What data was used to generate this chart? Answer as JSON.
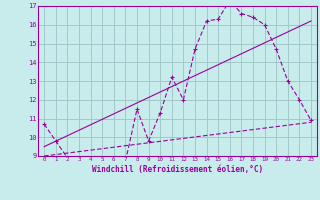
{
  "title": "",
  "xlabel": "Windchill (Refroidissement éolien,°C)",
  "bg_color": "#c8ecec",
  "grid_color": "#a0c8c8",
  "line_color": "#990099",
  "xlim": [
    -0.5,
    23.5
  ],
  "ylim": [
    9,
    17
  ],
  "xticks": [
    0,
    1,
    2,
    3,
    4,
    5,
    6,
    7,
    8,
    9,
    10,
    11,
    12,
    13,
    14,
    15,
    16,
    17,
    18,
    19,
    20,
    21,
    22,
    23
  ],
  "yticks": [
    9,
    10,
    11,
    12,
    13,
    14,
    15,
    16,
    17
  ],
  "line1_x": [
    0,
    1,
    2,
    3,
    4,
    5,
    6,
    7,
    8,
    9,
    10,
    11,
    12,
    13,
    14,
    15,
    16,
    17,
    18,
    19,
    20,
    21,
    22,
    23
  ],
  "line1_y": [
    10.7,
    9.8,
    8.9,
    8.9,
    8.9,
    8.8,
    8.8,
    8.7,
    11.5,
    9.8,
    11.3,
    13.2,
    12.0,
    14.7,
    16.2,
    16.3,
    17.3,
    16.6,
    16.4,
    16.0,
    14.7,
    13.0,
    12.0,
    10.9
  ],
  "line2_x": [
    0,
    23
  ],
  "line2_y": [
    9.5,
    16.2
  ],
  "line3_x": [
    0,
    23
  ],
  "line3_y": [
    9.0,
    10.8
  ]
}
